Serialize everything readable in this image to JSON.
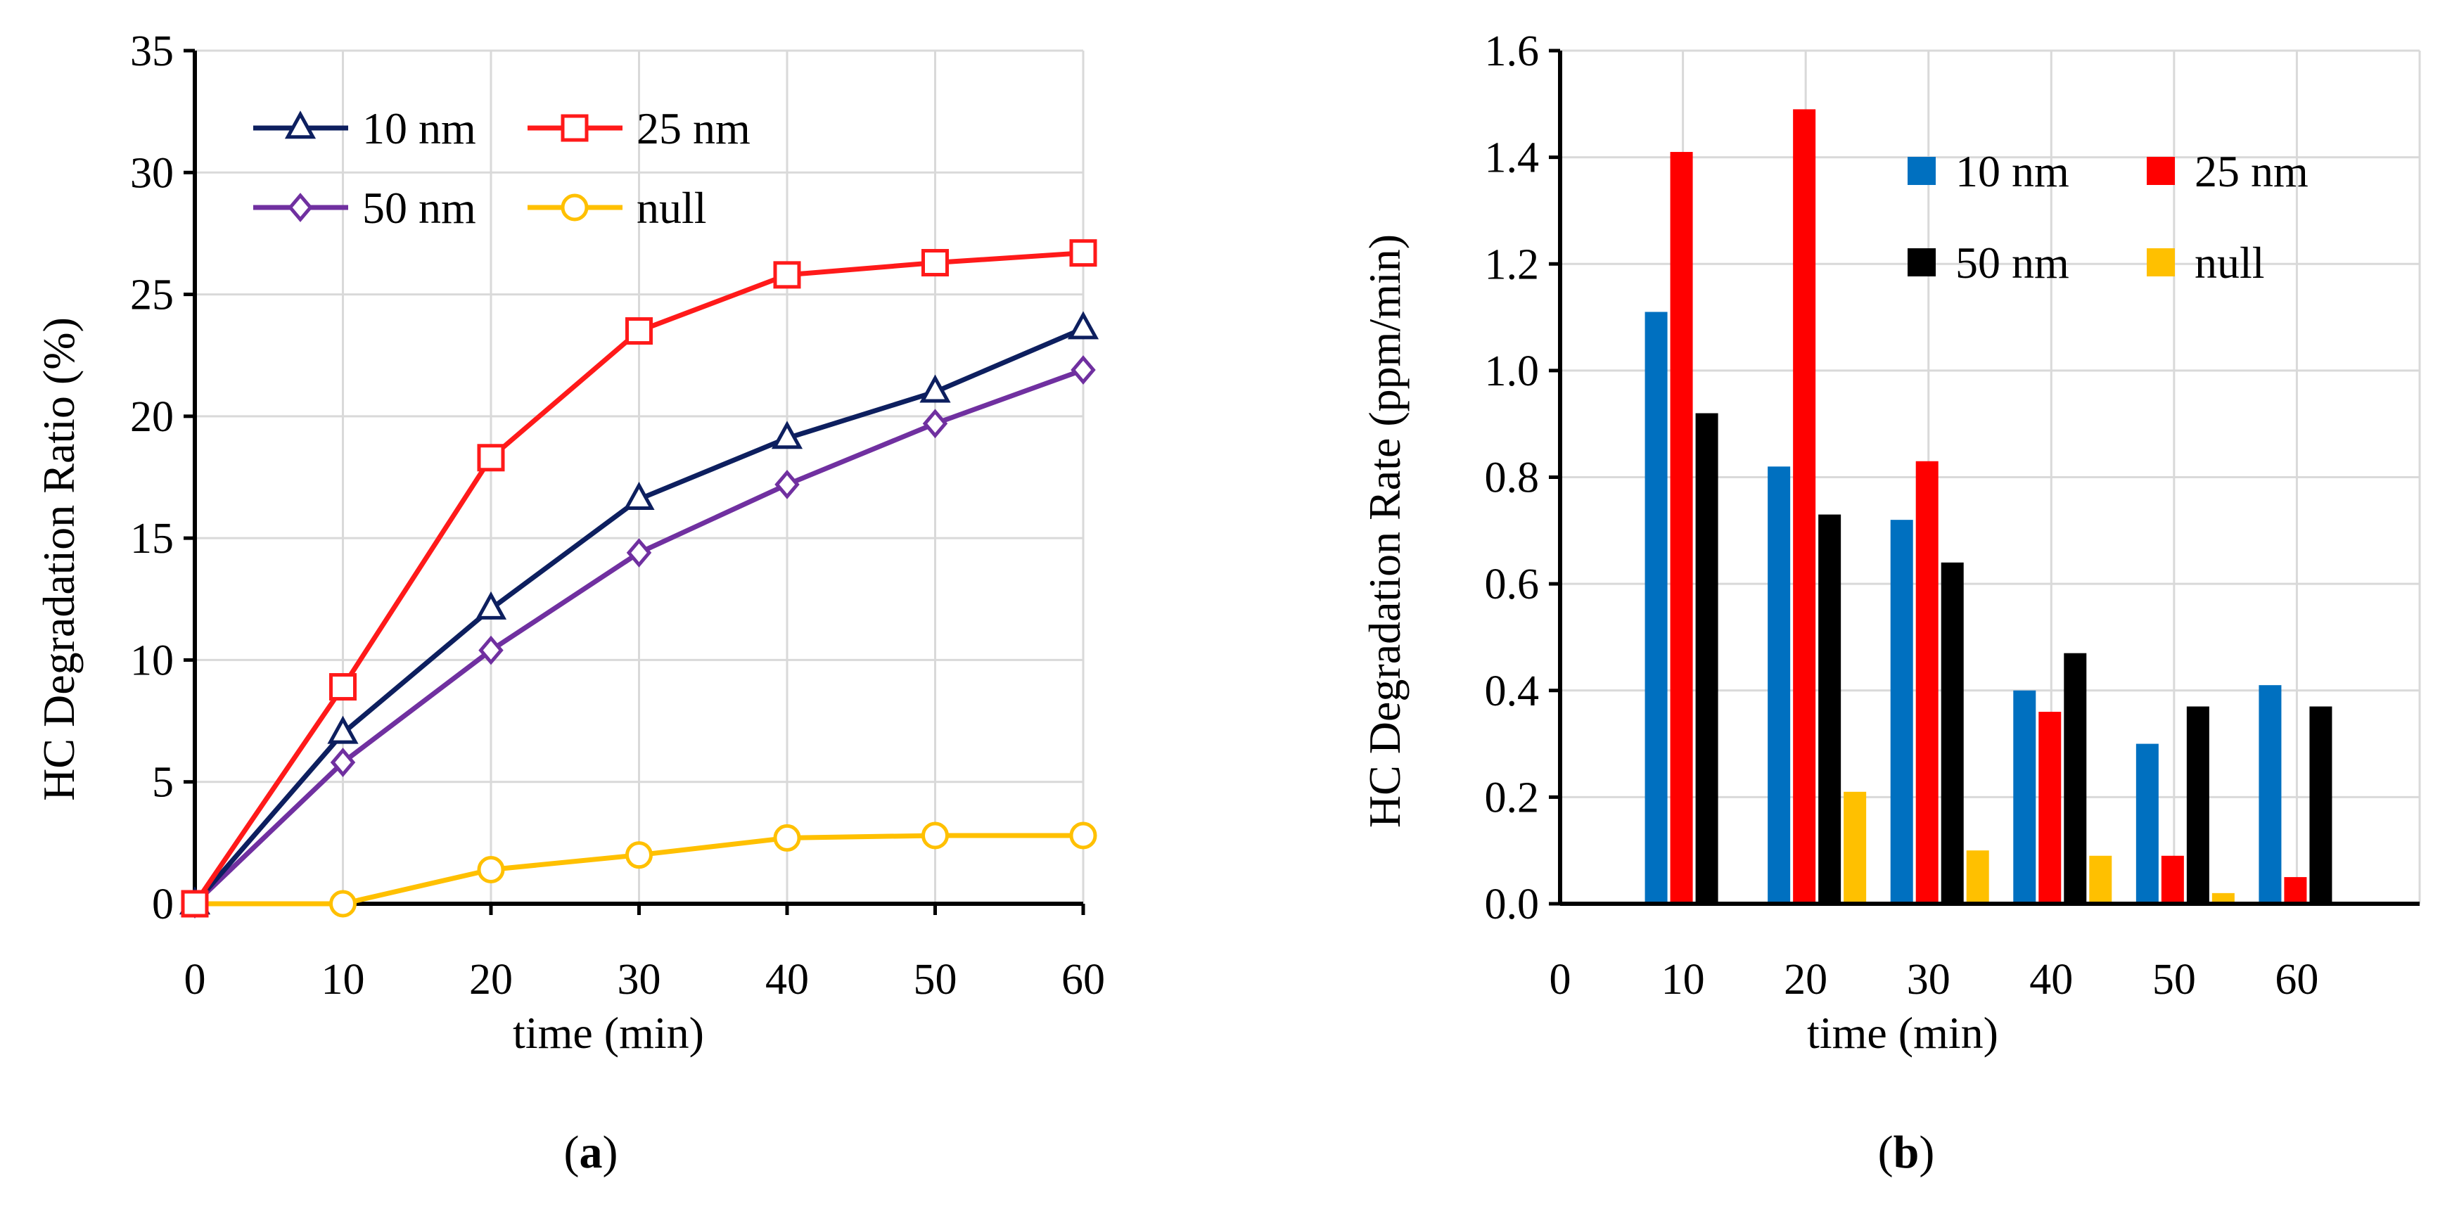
{
  "colors": {
    "c10": "#0d1f5f",
    "c25": "#ff1a1a",
    "c50": "#7030a0",
    "cnull": "#ffc000",
    "b10": "#0070c0",
    "b25": "#ff0000",
    "b50": "#000000",
    "bnull": "#ffc000",
    "grid": "#d9d9d9"
  },
  "chart_data": [
    {
      "type": "line",
      "panel_label": "(a)",
      "panel_letter": "a",
      "xlabel": "time  (min)",
      "ylabel": "HC Degradation Ratio (%)",
      "x": [
        0,
        10,
        20,
        30,
        40,
        50,
        60
      ],
      "x_ticks": [
        "0",
        "10",
        "20",
        "30",
        "40",
        "50",
        "60"
      ],
      "xlim": [
        0,
        60
      ],
      "y_ticks": [
        "0",
        "5",
        "10",
        "15",
        "20",
        "25",
        "30",
        "35"
      ],
      "ylim": [
        0,
        35
      ],
      "grid": true,
      "legend_position": "top-left",
      "series": [
        {
          "name": "10 nm",
          "marker": "triangle",
          "color_key": "c10",
          "values": [
            0,
            7.0,
            12.1,
            16.6,
            19.1,
            21.0,
            23.6
          ]
        },
        {
          "name": "25 nm",
          "marker": "square",
          "color_key": "c25",
          "values": [
            0,
            8.9,
            18.3,
            23.5,
            25.8,
            26.3,
            26.7
          ]
        },
        {
          "name": "50 nm",
          "marker": "diamond",
          "color_key": "c50",
          "values": [
            0,
            5.8,
            10.4,
            14.4,
            17.2,
            19.7,
            21.9
          ]
        },
        {
          "name": "null",
          "marker": "circle",
          "color_key": "cnull",
          "values": [
            0,
            0.0,
            1.4,
            2.0,
            2.7,
            2.8,
            2.8
          ]
        }
      ]
    },
    {
      "type": "bar",
      "panel_label": "(b)",
      "panel_letter": "b",
      "xlabel": "time  (min)",
      "ylabel": "HC Degradation Rate (ppm/min)",
      "x_ticks": [
        "0",
        "10",
        "20",
        "30",
        "40",
        "50",
        "60"
      ],
      "categories": [
        "10",
        "20",
        "30",
        "40",
        "50",
        "60"
      ],
      "xlim": [
        0,
        70
      ],
      "y_ticks": [
        "0.0",
        "0.2",
        "0.4",
        "0.6",
        "0.8",
        "1.0",
        "1.2",
        "1.4",
        "1.6"
      ],
      "ylim": [
        0,
        1.6
      ],
      "grid": true,
      "legend_position": "top-right",
      "series": [
        {
          "name": "10 nm",
          "color_key": "b10",
          "values": [
            1.11,
            0.82,
            0.72,
            0.4,
            0.3,
            0.41
          ]
        },
        {
          "name": "25 nm",
          "color_key": "b25",
          "values": [
            1.41,
            1.49,
            0.83,
            0.36,
            0.09,
            0.05
          ]
        },
        {
          "name": "50 nm",
          "color_key": "b50",
          "values": [
            0.92,
            0.73,
            0.64,
            0.47,
            0.37,
            0.37
          ]
        },
        {
          "name": "null",
          "color_key": "bnull",
          "values": [
            0.0,
            0.21,
            0.1,
            0.09,
            0.02,
            0.0
          ]
        }
      ]
    }
  ]
}
